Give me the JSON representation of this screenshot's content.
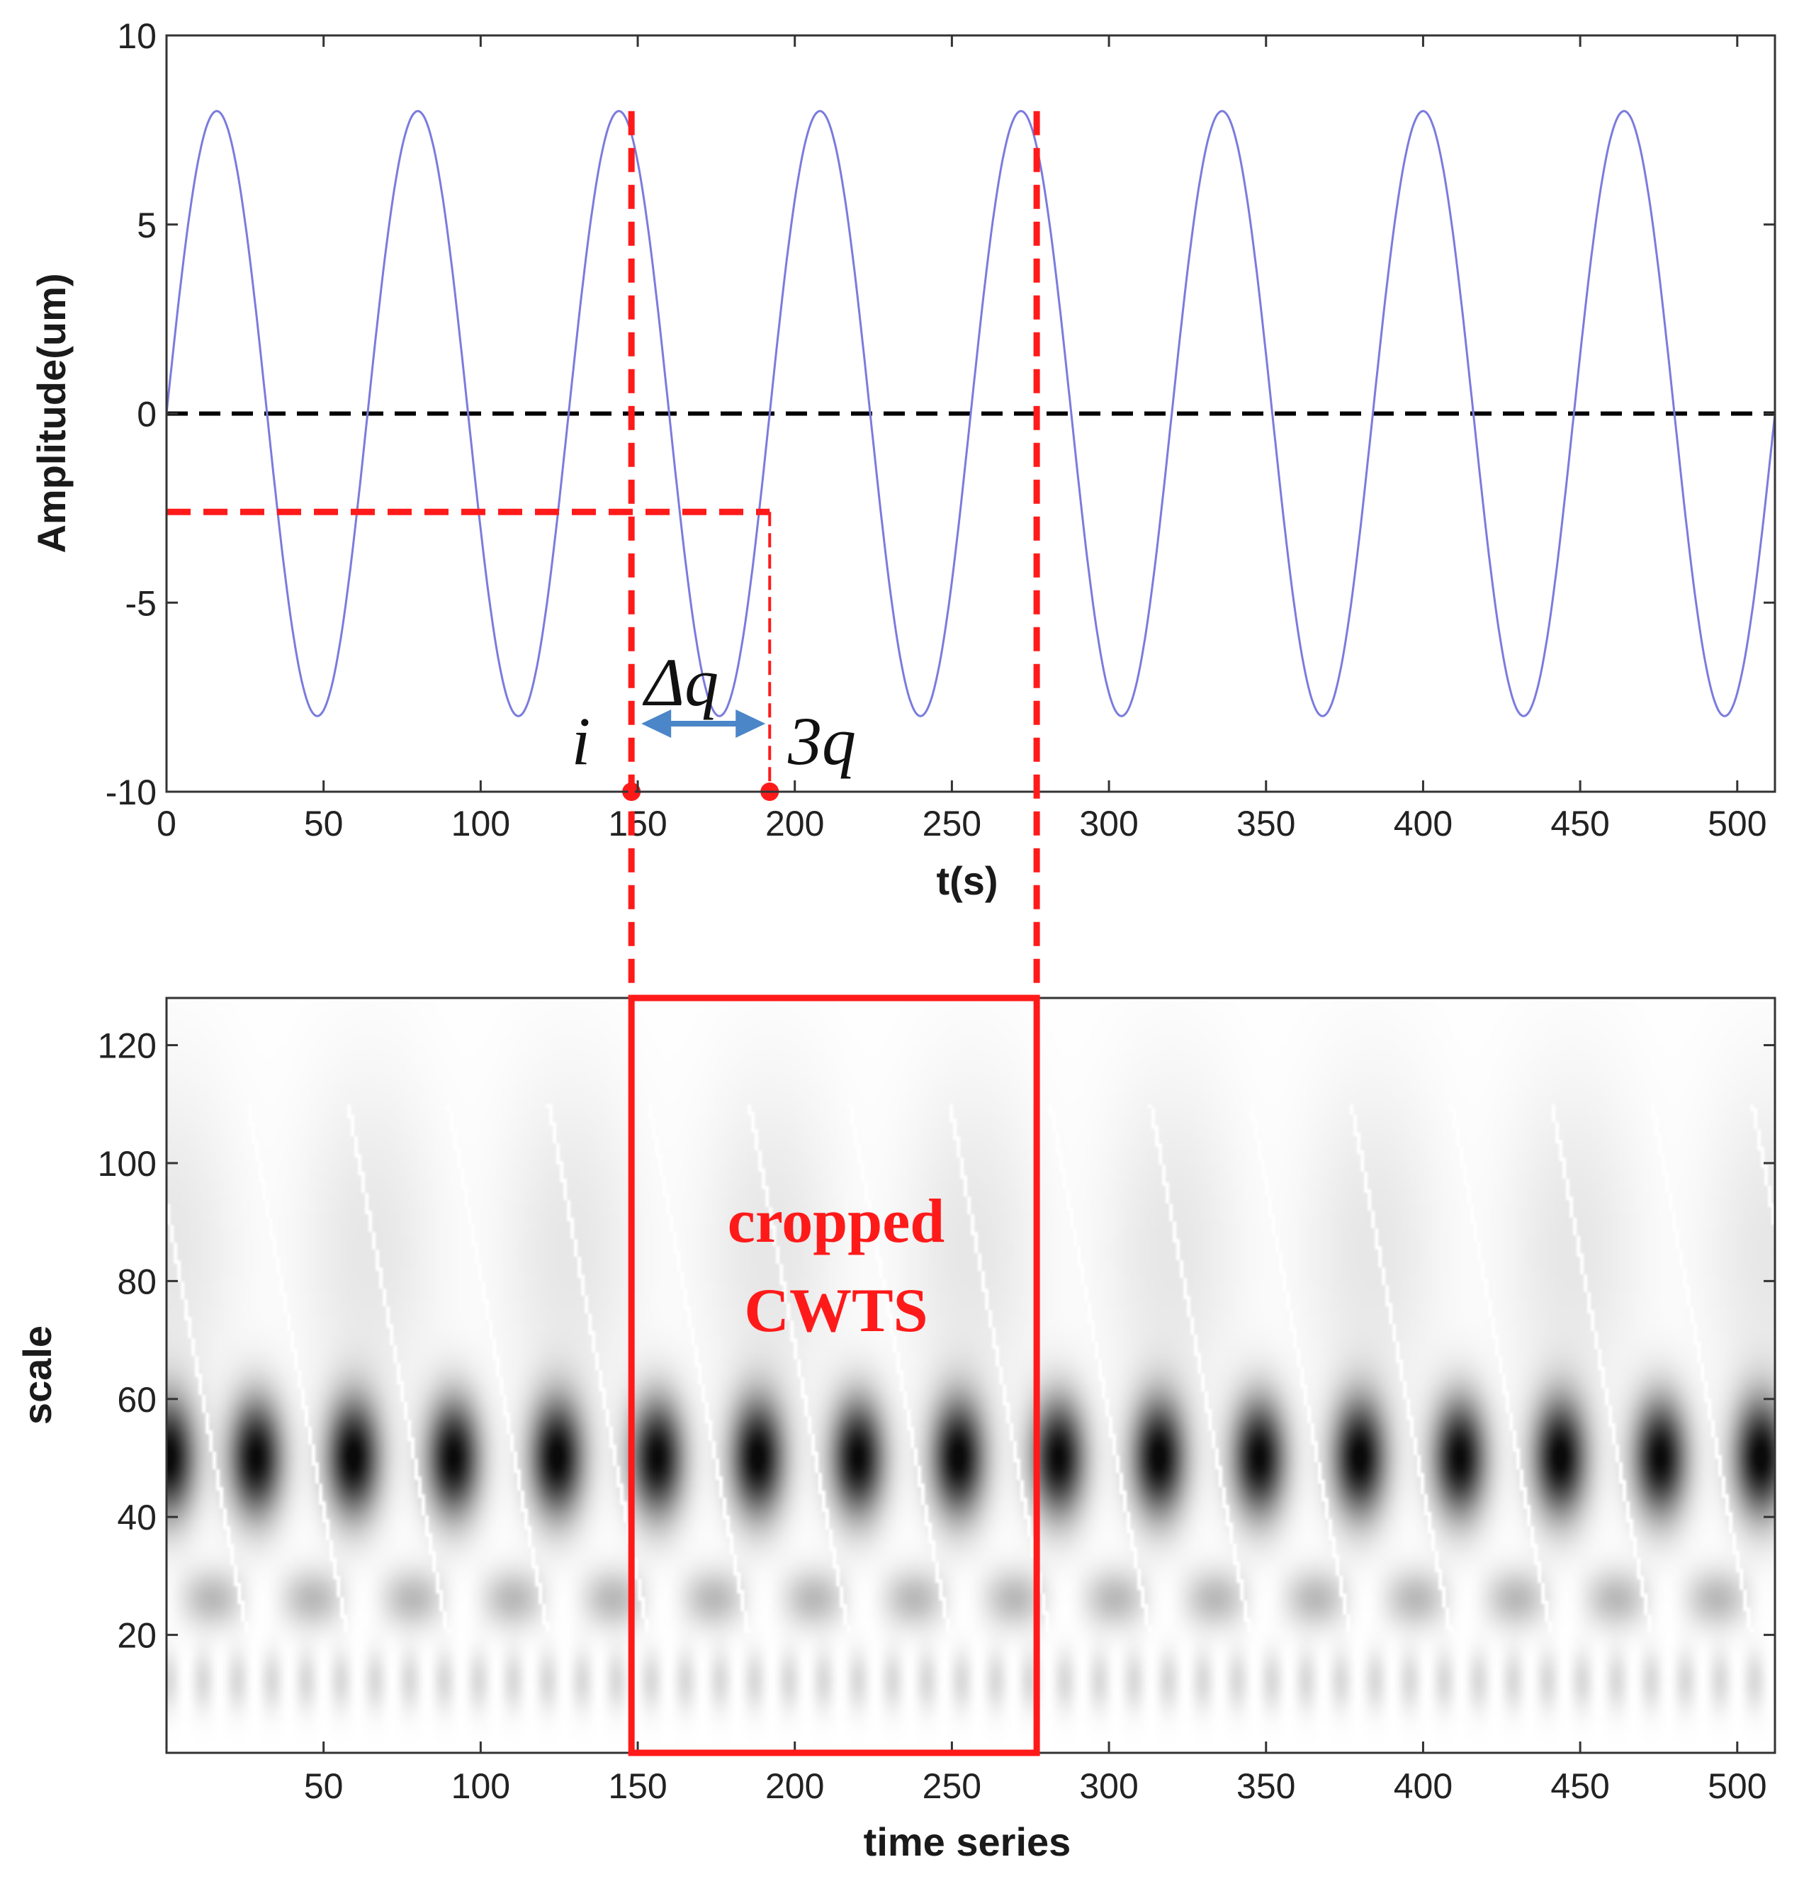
{
  "colors": {
    "signal": "#7b7bde",
    "zero_line": "#000000",
    "annotation": "#ff1a1a",
    "arrow": "#4a86c8",
    "axis": "#333333"
  },
  "chart_data": [
    {
      "type": "line",
      "title": "",
      "xlabel": "t(s)",
      "ylabel": "Amplitude(um)",
      "xlim": [
        0,
        512
      ],
      "ylim": [
        -10,
        10
      ],
      "x_ticks": [
        "0",
        "50",
        "100",
        "150",
        "200",
        "250",
        "300",
        "350",
        "400",
        "450",
        "500"
      ],
      "x_tick_values": [
        0,
        50,
        100,
        150,
        200,
        250,
        300,
        350,
        400,
        450,
        500
      ],
      "y_ticks": [
        "10",
        "5",
        "0",
        "-5",
        "-10"
      ],
      "y_tick_values": [
        10,
        5,
        0,
        -5,
        -10
      ],
      "series": [
        {
          "name": "signal",
          "amplitude": 8,
          "period": 64,
          "t_start": 0,
          "t_end": 512,
          "phase": 0
        }
      ],
      "reference_lines": [
        {
          "name": "zero",
          "orientation": "horizontal",
          "y": 0,
          "style": "dashed"
        }
      ],
      "annotations": {
        "window_start": 148,
        "window_end": 277,
        "i_x": 148,
        "three_q_x": 192,
        "h_line_y": -2.6,
        "h_line_x_range": [
          0,
          192
        ],
        "labels": {
          "i": "i",
          "delta_q": "Δq",
          "three_q": "3q"
        }
      }
    },
    {
      "type": "heatmap",
      "title": "",
      "xlabel": "time series",
      "ylabel": "scale",
      "xlim": [
        0,
        512
      ],
      "ylim": [
        0,
        128
      ],
      "x_ticks": [
        "50",
        "100",
        "150",
        "200",
        "250",
        "300",
        "350",
        "400",
        "450",
        "500"
      ],
      "x_tick_values": [
        50,
        100,
        150,
        200,
        250,
        300,
        350,
        400,
        450,
        500
      ],
      "y_ticks": [
        "120",
        "100",
        "80",
        "60",
        "40",
        "20"
      ],
      "y_tick_values": [
        120,
        100,
        80,
        60,
        40,
        20
      ],
      "colormap": "gray (|CWT coefficient|, dark = large)",
      "dominant_scale": 50,
      "blob_centers": [
        0,
        28,
        59,
        91,
        124,
        156,
        188,
        220,
        252,
        284,
        316,
        348,
        380,
        412,
        444,
        476,
        508
      ],
      "crop_box": {
        "x_range": [
          148,
          277
        ],
        "y_range": [
          0,
          128
        ]
      },
      "crop_label": [
        "cropped",
        "CWTS"
      ]
    }
  ]
}
